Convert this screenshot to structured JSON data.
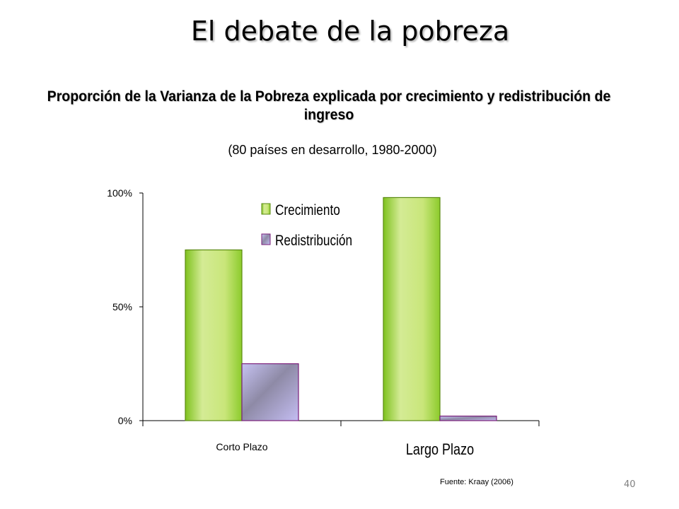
{
  "slide": {
    "title": "El debate de la pobreza",
    "page_number": "40",
    "source": "Fuente: Kraay (2006)"
  },
  "chart_data": {
    "type": "bar",
    "title": "Proporción de la Varianza de la Pobreza explicada por crecimiento y redistribución de ingreso",
    "subtitle": "(80 países en desarrollo, 1980-2000)",
    "categories": [
      "Corto Plazo",
      "Largo Plazo"
    ],
    "series": [
      {
        "name": "Crecimiento",
        "values": [
          75,
          98
        ],
        "color": "#a6d84a"
      },
      {
        "name": "Redistribución",
        "values": [
          25,
          2
        ],
        "color": "#c4bdf2"
      }
    ],
    "y_ticks": [
      "0%",
      "50%",
      "100%"
    ],
    "y_tick_values": [
      0,
      50,
      100
    ],
    "ylim": [
      0,
      100
    ],
    "grid": false,
    "legend_position": "top-center"
  }
}
